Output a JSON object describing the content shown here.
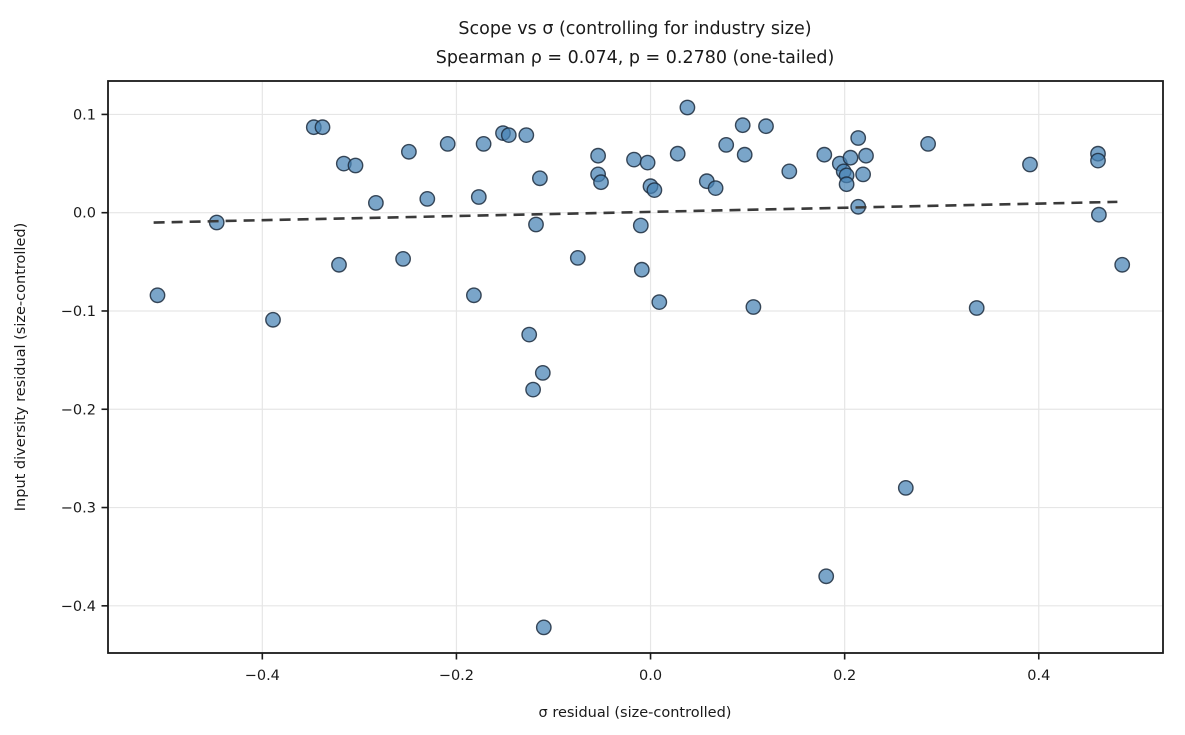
{
  "chart_data": {
    "type": "scatter",
    "title": "Scope vs σ (controlling for industry size)",
    "subtitle": "Spearman ρ = 0.074, p = 0.2780 (one-tailed)",
    "xlabel": "σ residual (size-controlled)",
    "ylabel": "Input diversity residual (size-controlled)",
    "xlim": [
      -0.559,
      0.528
    ],
    "ylim": [
      -0.448,
      0.134
    ],
    "xticks": [
      -0.4,
      -0.2,
      0.0,
      0.2,
      0.4
    ],
    "x_tick_labels": [
      "−0.4",
      "−0.2",
      "0.0",
      "0.2",
      "0.4"
    ],
    "yticks": [
      0.1,
      0.0,
      -0.1,
      -0.2,
      -0.3,
      -0.4
    ],
    "y_tick_labels": [
      "0.1",
      "0.0",
      "−0.1",
      "−0.2",
      "−0.3",
      "−0.4"
    ],
    "grid": true,
    "legend": "none",
    "colors": {
      "marker_fill": "#4682B4",
      "marker_edge": "#1d2d3e",
      "trend_line": "#3a3a3a",
      "grid_line": "#e6e6e6",
      "spine": "#1a1a1a",
      "background": "#ffffff"
    },
    "trend": {
      "style": "dashed",
      "x1": -0.512,
      "y1": -0.01,
      "x2": 0.481,
      "y2": 0.011
    },
    "points": [
      [
        -0.508,
        -0.084
      ],
      [
        -0.447,
        -0.01
      ],
      [
        -0.389,
        -0.109
      ],
      [
        -0.347,
        0.087
      ],
      [
        -0.338,
        0.087
      ],
      [
        -0.316,
        0.05
      ],
      [
        -0.304,
        0.048
      ],
      [
        -0.321,
        -0.053
      ],
      [
        -0.283,
        0.01
      ],
      [
        -0.255,
        -0.047
      ],
      [
        -0.249,
        0.062
      ],
      [
        -0.23,
        0.014
      ],
      [
        -0.209,
        0.07
      ],
      [
        -0.182,
        -0.084
      ],
      [
        -0.177,
        0.016
      ],
      [
        -0.172,
        0.07
      ],
      [
        -0.152,
        0.081
      ],
      [
        -0.146,
        0.079
      ],
      [
        -0.128,
        0.079
      ],
      [
        -0.125,
        -0.124
      ],
      [
        -0.121,
        -0.18
      ],
      [
        -0.118,
        -0.012
      ],
      [
        -0.114,
        0.035
      ],
      [
        -0.111,
        -0.163
      ],
      [
        -0.11,
        -0.422
      ],
      [
        -0.075,
        -0.046
      ],
      [
        -0.054,
        0.058
      ],
      [
        -0.054,
        0.039
      ],
      [
        -0.051,
        0.031
      ],
      [
        -0.017,
        0.054
      ],
      [
        -0.01,
        -0.013
      ],
      [
        -0.009,
        -0.058
      ],
      [
        -0.003,
        0.051
      ],
      [
        0.0,
        0.027
      ],
      [
        0.004,
        0.023
      ],
      [
        0.009,
        -0.091
      ],
      [
        0.028,
        0.06
      ],
      [
        0.038,
        0.107
      ],
      [
        0.058,
        0.032
      ],
      [
        0.067,
        0.025
      ],
      [
        0.078,
        0.069
      ],
      [
        0.095,
        0.089
      ],
      [
        0.097,
        0.059
      ],
      [
        0.106,
        -0.096
      ],
      [
        0.119,
        0.088
      ],
      [
        0.143,
        0.042
      ],
      [
        0.179,
        0.059
      ],
      [
        0.181,
        -0.37
      ],
      [
        0.195,
        0.05
      ],
      [
        0.199,
        0.042
      ],
      [
        0.202,
        0.038
      ],
      [
        0.202,
        0.029
      ],
      [
        0.206,
        0.056
      ],
      [
        0.214,
        0.076
      ],
      [
        0.214,
        0.006
      ],
      [
        0.219,
        0.039
      ],
      [
        0.222,
        0.058
      ],
      [
        0.263,
        -0.28
      ],
      [
        0.286,
        0.07
      ],
      [
        0.336,
        -0.097
      ],
      [
        0.391,
        0.049
      ],
      [
        0.461,
        0.06
      ],
      [
        0.461,
        0.053
      ],
      [
        0.462,
        -0.002
      ],
      [
        0.486,
        -0.053
      ]
    ]
  }
}
